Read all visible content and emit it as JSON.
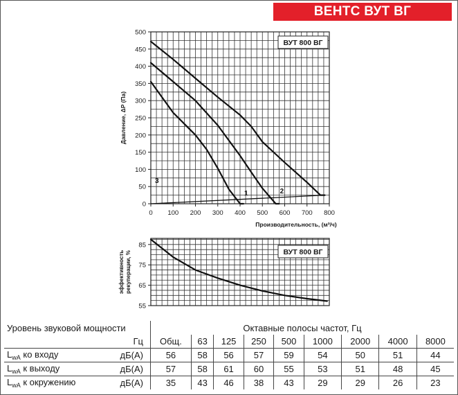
{
  "banner": {
    "title": "ВЕНТС ВУТ ВГ",
    "color": "#e3202a"
  },
  "chart_data": [
    {
      "type": "line",
      "label_box": "ВУТ 800 ВГ",
      "xlabel": "Производительность, (м³/ч)",
      "ylabel": "Давление, ΔP (Па)",
      "xlim": [
        0,
        800
      ],
      "ylim": [
        0,
        500
      ],
      "xticks": [
        0,
        100,
        200,
        300,
        400,
        500,
        600,
        700,
        800
      ],
      "yticks": [
        0,
        50,
        100,
        150,
        200,
        250,
        300,
        350,
        400,
        450,
        500
      ],
      "grid": true,
      "series": [
        {
          "name": "1",
          "x": [
            0,
            100,
            200,
            250,
            300,
            350,
            400,
            415
          ],
          "y": [
            355,
            265,
            200,
            158,
            103,
            42,
            0,
            0
          ]
        },
        {
          "name": "2",
          "x": [
            0,
            100,
            200,
            300,
            400,
            450,
            500,
            560,
            575
          ],
          "y": [
            410,
            355,
            300,
            228,
            140,
            92,
            45,
            0,
            0
          ]
        },
        {
          "name": "3",
          "x": [
            0,
            100,
            200,
            300,
            400,
            450,
            500,
            600,
            700,
            760,
            780
          ],
          "y": [
            472,
            420,
            365,
            310,
            258,
            225,
            180,
            120,
            62,
            25,
            25
          ]
        },
        {
          "name": "",
          "role": "system-line",
          "x": [
            0,
            780
          ],
          "y": [
            0,
            25
          ]
        }
      ]
    },
    {
      "type": "line",
      "label_box": "ВУТ 800 ВГ",
      "ylabel": "эффективность рекуперации, %",
      "xlim": [
        0,
        800
      ],
      "ylim": [
        55,
        88
      ],
      "yticks": [
        55,
        65,
        75,
        85
      ],
      "grid": true,
      "series": [
        {
          "name": "",
          "x": [
            0,
            100,
            200,
            300,
            400,
            500,
            600,
            700,
            790
          ],
          "y": [
            87.5,
            78.8,
            72.5,
            68.5,
            65.0,
            62.2,
            60.0,
            58.4,
            57.2
          ]
        }
      ]
    }
  ],
  "sound_table": {
    "title": "Уровень звуковой мощности",
    "bands_title": "Октавные полосы частот, Гц",
    "unit_header": "Гц",
    "columns": [
      "Общ.",
      "63",
      "125",
      "250",
      "500",
      "1000",
      "2000",
      "4000",
      "8000"
    ],
    "rows": [
      {
        "label_main": "L",
        "label_sub": "wA",
        "label_rest": " ко входу",
        "unit": "дБ(А)",
        "values": [
          "56",
          "58",
          "56",
          "57",
          "59",
          "54",
          "50",
          "51",
          "44"
        ]
      },
      {
        "label_main": "L",
        "label_sub": "wA",
        "label_rest": " к выходу",
        "unit": "дБ(А)",
        "values": [
          "57",
          "58",
          "61",
          "60",
          "55",
          "53",
          "51",
          "48",
          "45"
        ]
      },
      {
        "label_main": "L",
        "label_sub": "wA",
        "label_rest": " к окружению",
        "unit": "дБ(А)",
        "values": [
          "35",
          "43",
          "46",
          "38",
          "43",
          "29",
          "29",
          "26",
          "23"
        ]
      }
    ]
  }
}
